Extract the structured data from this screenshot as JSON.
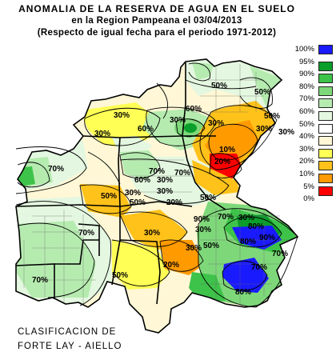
{
  "title": {
    "line1": "ANOMALIA DE LA RESERVA DE AGUA EN EL SUELO",
    "line2": "en la Region Pampeana el   03/04/2013",
    "line3": "(Respecto de igual fecha para el periodo 1971-2012)"
  },
  "legend": [
    {
      "label": "100%",
      "color": "#1a1aff"
    },
    {
      "label": "95%",
      "color": "#0a9e2a"
    },
    {
      "label": "90%",
      "color": "#3ec34a"
    },
    {
      "label": "80%",
      "color": "#7ed87a"
    },
    {
      "label": "70%",
      "color": "#b6ebb0"
    },
    {
      "label": "60%",
      "color": "#e4f7e0"
    },
    {
      "label": "50%",
      "color": "#ffffff"
    },
    {
      "label": "40%",
      "color": "#fff7d6"
    },
    {
      "label": "30%",
      "color": "#ffff55"
    },
    {
      "label": "20%",
      "color": "#ffc21a"
    },
    {
      "label": "10%",
      "color": "#ff9a00"
    },
    {
      "label": "5%",
      "color": "#ff0000"
    },
    {
      "label": "0%",
      "color": ""
    }
  ],
  "contour_labels": [
    "30%",
    "50%",
    "30%",
    "60%",
    "30%",
    "50%",
    "30%",
    "30%",
    "60%",
    "10%",
    "30%",
    "20%",
    "70%",
    "70%",
    "30%",
    "60%",
    "30%",
    "70%",
    "50%",
    "50%",
    "30%",
    "20%",
    "70%",
    "30%",
    "30%",
    "90%",
    "70%",
    "30%",
    "50%",
    "90%",
    "20%",
    "30%",
    "70%",
    "80%",
    "80%",
    "70%",
    "50%",
    "70%",
    "50%",
    "50%",
    "80%"
  ],
  "credit": {
    "line1": "CLASIFICACION DE",
    "line2": "FORTE LAY - AIELLO"
  }
}
